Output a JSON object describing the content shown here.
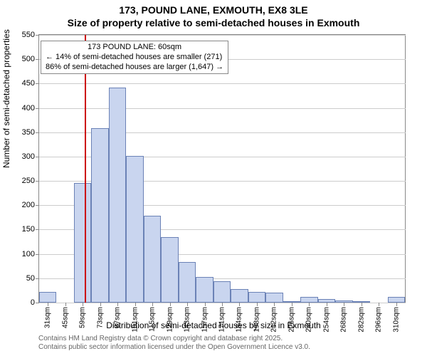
{
  "title": {
    "line1": "173, POUND LANE, EXMOUTH, EX8 3LE",
    "line2": "Size of property relative to semi-detached houses in Exmouth"
  },
  "ylabel": "Number of semi-detached properties",
  "xlabel": "Distribution of semi-detached houses by size in Exmouth",
  "footnote": {
    "line1": "Contains HM Land Registry data © Crown copyright and database right 2025.",
    "line2": "Contains public sector information licensed under the Open Government Licence v3.0."
  },
  "chart": {
    "type": "histogram",
    "ylim": [
      0,
      550
    ],
    "yticks": [
      0,
      50,
      100,
      150,
      200,
      250,
      300,
      350,
      400,
      450,
      500,
      550
    ],
    "xcategories": [
      "31sqm",
      "45sqm",
      "59sqm",
      "73sqm",
      "87sqm",
      "101sqm",
      "115sqm",
      "129sqm",
      "143sqm",
      "157sqm",
      "171sqm",
      "184sqm",
      "198sqm",
      "212sqm",
      "226sqm",
      "240sqm",
      "254sqm",
      "268sqm",
      "282sqm",
      "296sqm",
      "310sqm"
    ],
    "bar_values": [
      22,
      0,
      246,
      358,
      442,
      302,
      178,
      135,
      84,
      52,
      44,
      28,
      22,
      20,
      2,
      12,
      8,
      5,
      3,
      0,
      12
    ],
    "bar_fill": "#c9d5ef",
    "bar_border": "#6b82b6",
    "background": "#ffffff",
    "grid_color": "#cccccc",
    "axis_color": "#888888",
    "tick_fontsize": 11,
    "label_fontsize": 12,
    "reference_line": {
      "position_index": 2.1,
      "color": "#cc0000",
      "width": 2
    },
    "annotation": {
      "line1": "173 POUND LANE: 60sqm",
      "line2": "← 14% of semi-detached houses are smaller (271)",
      "line3": "86% of semi-detached houses are larger (1,647) →",
      "border_color": "#888888",
      "top_offset": 8,
      "left_offset": 2
    }
  }
}
